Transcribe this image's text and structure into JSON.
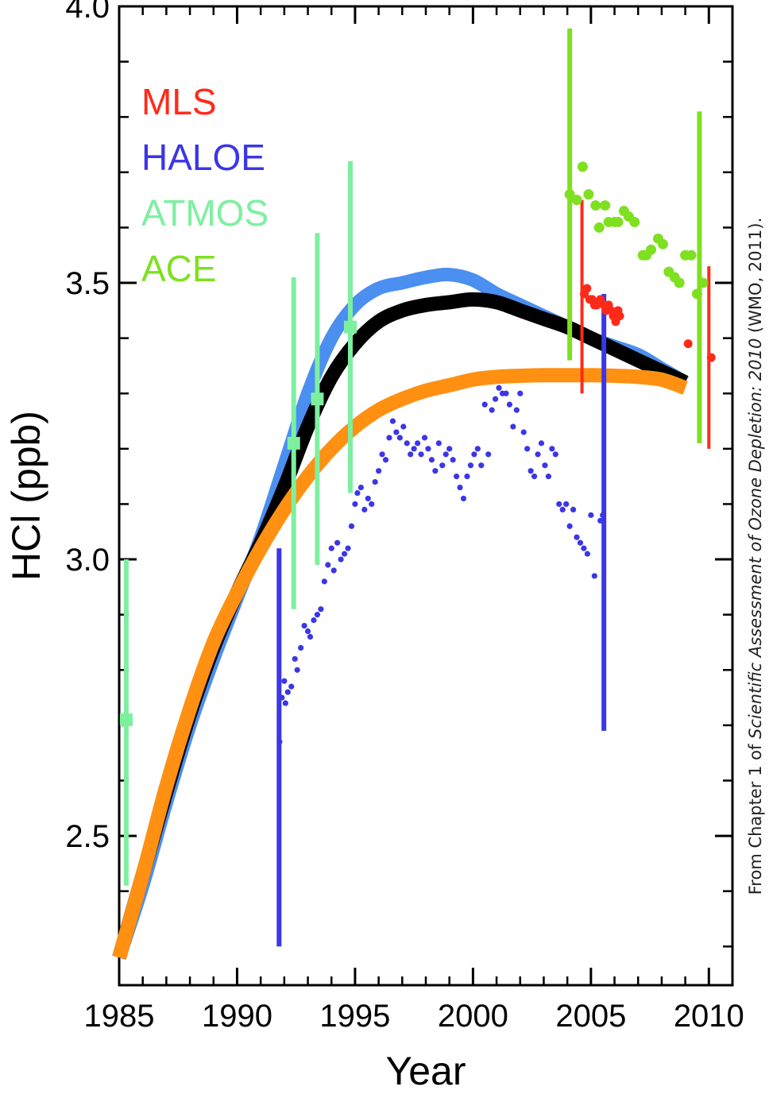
{
  "chart_data": {
    "type": "scatter",
    "xlabel": "Year",
    "ylabel": "HCl  (ppb)",
    "xlim": [
      1985,
      2011
    ],
    "ylim": [
      2.23,
      4.0
    ],
    "x_ticks": [
      "1985",
      "1990",
      "1995",
      "2000",
      "2005",
      "2010"
    ],
    "x_tick_values": [
      1985,
      1990,
      1995,
      2000,
      2005,
      2010
    ],
    "y_ticks": [
      "2.5",
      "3.0",
      "3.5",
      "4.0"
    ],
    "y_tick_values": [
      2.5,
      3.0,
      3.5,
      4.0
    ],
    "y_minor_step": 0.1,
    "legend_position": "upper-left",
    "source_note": {
      "prefix": "From Chapter 1 of ",
      "italic": "Scientific Assessment of Ozone Depletion: 2010",
      "suffix": " (WMO, 2011)."
    },
    "series": [
      {
        "name": "MLS",
        "color": "#ff2a1a",
        "points": [
          [
            2004.72,
            3.48
          ],
          [
            2004.83,
            3.49
          ],
          [
            2004.95,
            3.47
          ],
          [
            2005.05,
            3.47
          ],
          [
            2005.15,
            3.46
          ],
          [
            2005.25,
            3.46
          ],
          [
            2005.4,
            3.47
          ],
          [
            2005.55,
            3.46
          ],
          [
            2005.65,
            3.45
          ],
          [
            2005.75,
            3.46
          ],
          [
            2005.85,
            3.45
          ],
          [
            2005.95,
            3.44
          ],
          [
            2006.05,
            3.43
          ],
          [
            2006.15,
            3.45
          ],
          [
            2006.22,
            3.44
          ],
          [
            2009.12,
            3.39
          ],
          [
            2010.1,
            3.365
          ]
        ],
        "error_bars": [
          {
            "x": 2004.62,
            "low": 3.3,
            "high": 3.65
          },
          {
            "x": 2010.0,
            "low": 3.2,
            "high": 3.53
          }
        ]
      },
      {
        "name": "HALOE",
        "color": "#3b36e6",
        "points": [
          [
            1991.8,
            2.67
          ],
          [
            1991.9,
            2.75
          ],
          [
            1992.0,
            2.78
          ],
          [
            1992.05,
            2.74
          ],
          [
            1992.15,
            2.76
          ],
          [
            1992.3,
            2.77
          ],
          [
            1992.45,
            2.82
          ],
          [
            1992.55,
            2.8
          ],
          [
            1992.7,
            2.84
          ],
          [
            1992.85,
            2.88
          ],
          [
            1993.0,
            2.87
          ],
          [
            1993.1,
            2.86
          ],
          [
            1993.25,
            2.89
          ],
          [
            1993.4,
            2.9
          ],
          [
            1993.55,
            2.91
          ],
          [
            1993.7,
            2.96
          ],
          [
            1993.85,
            2.99
          ],
          [
            1994.0,
            3.02
          ],
          [
            1994.1,
            2.98
          ],
          [
            1994.25,
            3.03
          ],
          [
            1994.4,
            3.0
          ],
          [
            1994.55,
            3.01
          ],
          [
            1994.7,
            3.02
          ],
          [
            1994.85,
            3.06
          ],
          [
            1995.0,
            3.1
          ],
          [
            1995.1,
            3.12
          ],
          [
            1995.25,
            3.13
          ],
          [
            1995.4,
            3.09
          ],
          [
            1995.55,
            3.11
          ],
          [
            1995.7,
            3.1
          ],
          [
            1995.85,
            3.14
          ],
          [
            1996.0,
            3.16
          ],
          [
            1996.15,
            3.19
          ],
          [
            1996.3,
            3.18
          ],
          [
            1996.45,
            3.22
          ],
          [
            1996.6,
            3.25
          ],
          [
            1996.75,
            3.23
          ],
          [
            1996.9,
            3.22
          ],
          [
            1997.05,
            3.24
          ],
          [
            1997.2,
            3.21
          ],
          [
            1997.35,
            3.19
          ],
          [
            1997.5,
            3.2
          ],
          [
            1997.65,
            3.21
          ],
          [
            1997.8,
            3.19
          ],
          [
            1997.95,
            3.22
          ],
          [
            1998.1,
            3.2
          ],
          [
            1998.25,
            3.18
          ],
          [
            1998.4,
            3.16
          ],
          [
            1998.55,
            3.21
          ],
          [
            1998.7,
            3.17
          ],
          [
            1998.85,
            3.19
          ],
          [
            1999.0,
            3.2
          ],
          [
            1999.15,
            3.18
          ],
          [
            1999.3,
            3.15
          ],
          [
            1999.45,
            3.13
          ],
          [
            1999.6,
            3.11
          ],
          [
            1999.75,
            3.15
          ],
          [
            1999.9,
            3.17
          ],
          [
            2000.05,
            3.19
          ],
          [
            2000.2,
            3.2
          ],
          [
            2000.35,
            3.17
          ],
          [
            2000.5,
            3.28
          ],
          [
            2000.65,
            3.19
          ],
          [
            2000.8,
            3.27
          ],
          [
            2000.95,
            3.29
          ],
          [
            2001.1,
            3.31
          ],
          [
            2001.25,
            3.3
          ],
          [
            2001.4,
            3.3
          ],
          [
            2001.55,
            3.28
          ],
          [
            2001.7,
            3.24
          ],
          [
            2001.85,
            3.27
          ],
          [
            2002.0,
            3.3
          ],
          [
            2002.15,
            3.23
          ],
          [
            2002.3,
            3.2
          ],
          [
            2002.45,
            3.16
          ],
          [
            2002.6,
            3.15
          ],
          [
            2002.75,
            3.19
          ],
          [
            2002.9,
            3.21
          ],
          [
            2003.05,
            3.17
          ],
          [
            2003.2,
            3.15
          ],
          [
            2003.35,
            3.2
          ],
          [
            2003.5,
            3.19
          ],
          [
            2003.65,
            3.1
          ],
          [
            2003.8,
            3.09
          ],
          [
            2003.95,
            3.1
          ],
          [
            2004.1,
            3.06
          ],
          [
            2004.25,
            3.09
          ],
          [
            2004.4,
            3.04
          ],
          [
            2004.55,
            3.03
          ],
          [
            2004.7,
            3.02
          ],
          [
            2004.85,
            3.01
          ],
          [
            2005.0,
            3.08
          ],
          [
            2005.15,
            2.97
          ],
          [
            2005.4,
            3.07
          ],
          [
            2005.5,
            3.08
          ]
        ],
        "error_bars": [
          {
            "x": 1991.78,
            "low": 2.3,
            "high": 3.02
          },
          {
            "x": 2005.55,
            "low": 2.69,
            "high": 3.48
          }
        ]
      },
      {
        "name": "ATMOS",
        "color": "#7df0a0",
        "points": [
          [
            1985.3,
            2.71
          ],
          [
            1992.4,
            3.21
          ],
          [
            1993.4,
            3.29
          ],
          [
            1994.8,
            3.42
          ]
        ],
        "error_bars": [
          {
            "x": 1985.3,
            "low": 2.41,
            "high": 3.0
          },
          {
            "x": 1992.4,
            "low": 2.91,
            "high": 3.51
          },
          {
            "x": 1993.4,
            "low": 2.99,
            "high": 3.59
          },
          {
            "x": 1994.8,
            "low": 3.12,
            "high": 3.72
          }
        ]
      },
      {
        "name": "ACE",
        "color": "#7ee020",
        "points": [
          [
            2004.1,
            3.66
          ],
          [
            2004.4,
            3.65
          ],
          [
            2004.65,
            3.71
          ],
          [
            2004.9,
            3.66
          ],
          [
            2005.2,
            3.64
          ],
          [
            2005.35,
            3.6
          ],
          [
            2005.6,
            3.64
          ],
          [
            2005.75,
            3.61
          ],
          [
            2006.0,
            3.61
          ],
          [
            2006.15,
            3.61
          ],
          [
            2006.4,
            3.63
          ],
          [
            2006.6,
            3.62
          ],
          [
            2006.85,
            3.61
          ],
          [
            2007.2,
            3.55
          ],
          [
            2007.35,
            3.55
          ],
          [
            2007.55,
            3.56
          ],
          [
            2007.85,
            3.58
          ],
          [
            2008.05,
            3.57
          ],
          [
            2008.3,
            3.52
          ],
          [
            2008.55,
            3.51
          ],
          [
            2008.75,
            3.5
          ],
          [
            2009.0,
            3.55
          ],
          [
            2009.25,
            3.55
          ],
          [
            2009.5,
            3.48
          ],
          [
            2009.75,
            3.5
          ]
        ],
        "error_bars": [
          {
            "x": 2004.1,
            "low": 3.36,
            "high": 3.96
          },
          {
            "x": 2009.6,
            "low": 3.21,
            "high": 3.81
          }
        ]
      }
    ],
    "model_curves": [
      {
        "color": "#4b8ff0",
        "width": 17,
        "points": [
          [
            1985.0,
            2.28
          ],
          [
            1986.0,
            2.41
          ],
          [
            1987.0,
            2.56
          ],
          [
            1988.0,
            2.7
          ],
          [
            1989.0,
            2.82
          ],
          [
            1990.0,
            2.93
          ],
          [
            1991.0,
            3.04
          ],
          [
            1992.0,
            3.17
          ],
          [
            1993.0,
            3.3
          ],
          [
            1994.0,
            3.4
          ],
          [
            1995.0,
            3.46
          ],
          [
            1996.0,
            3.49
          ],
          [
            1997.0,
            3.5
          ],
          [
            1998.0,
            3.51
          ],
          [
            1999.0,
            3.515
          ],
          [
            2000.0,
            3.505
          ],
          [
            2001.0,
            3.48
          ],
          [
            2002.0,
            3.46
          ],
          [
            2003.0,
            3.44
          ],
          [
            2004.0,
            3.42
          ],
          [
            2005.0,
            3.4
          ],
          [
            2006.0,
            3.385
          ],
          [
            2007.0,
            3.37
          ],
          [
            2008.0,
            3.345
          ],
          [
            2009.0,
            3.32
          ]
        ]
      },
      {
        "color": "#000000",
        "width": 18,
        "points": [
          [
            1985.0,
            2.28
          ],
          [
            1986.0,
            2.43
          ],
          [
            1987.0,
            2.58
          ],
          [
            1988.0,
            2.72
          ],
          [
            1989.0,
            2.84
          ],
          [
            1990.0,
            2.94
          ],
          [
            1991.0,
            3.03
          ],
          [
            1992.0,
            3.13
          ],
          [
            1993.0,
            3.24
          ],
          [
            1994.0,
            3.33
          ],
          [
            1995.0,
            3.39
          ],
          [
            1996.0,
            3.43
          ],
          [
            1997.0,
            3.45
          ],
          [
            1998.0,
            3.46
          ],
          [
            1999.0,
            3.465
          ],
          [
            2000.0,
            3.47
          ],
          [
            2001.0,
            3.465
          ],
          [
            2002.0,
            3.45
          ],
          [
            2003.0,
            3.435
          ],
          [
            2004.0,
            3.42
          ],
          [
            2005.0,
            3.4
          ],
          [
            2006.0,
            3.38
          ],
          [
            2007.0,
            3.36
          ],
          [
            2008.0,
            3.34
          ],
          [
            2009.0,
            3.32
          ]
        ]
      },
      {
        "color": "#ff9012",
        "width": 18,
        "points": [
          [
            1985.0,
            2.28
          ],
          [
            1986.0,
            2.43
          ],
          [
            1987.0,
            2.59
          ],
          [
            1988.0,
            2.73
          ],
          [
            1989.0,
            2.85
          ],
          [
            1990.0,
            2.94
          ],
          [
            1991.0,
            3.02
          ],
          [
            1992.0,
            3.09
          ],
          [
            1993.0,
            3.15
          ],
          [
            1994.0,
            3.2
          ],
          [
            1995.0,
            3.24
          ],
          [
            1996.0,
            3.27
          ],
          [
            1997.0,
            3.29
          ],
          [
            1998.0,
            3.305
          ],
          [
            1999.0,
            3.315
          ],
          [
            2000.0,
            3.325
          ],
          [
            2001.0,
            3.33
          ],
          [
            2002.0,
            3.332
          ],
          [
            2003.0,
            3.333
          ],
          [
            2004.0,
            3.333
          ],
          [
            2005.0,
            3.333
          ],
          [
            2006.0,
            3.332
          ],
          [
            2007.0,
            3.33
          ],
          [
            2008.0,
            3.325
          ],
          [
            2009.0,
            3.31
          ]
        ]
      }
    ]
  }
}
